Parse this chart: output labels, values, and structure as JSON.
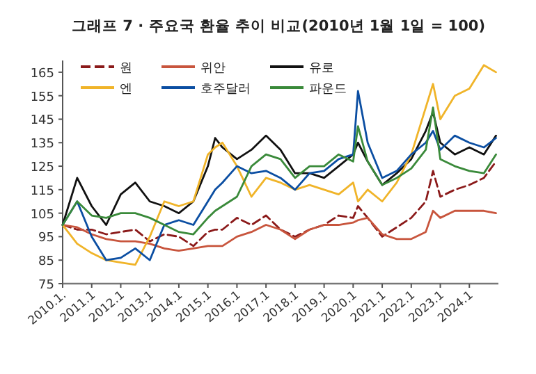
{
  "chart_data": {
    "type": "line",
    "title": "그래프 7 · 주요국 환율 추이 비교(2010년 1월 1일 = 100)",
    "x": [
      "2010-01",
      "2010-07",
      "2011-01",
      "2011-07",
      "2012-01",
      "2012-07",
      "2013-01",
      "2013-07",
      "2014-01",
      "2014-07",
      "2015-01",
      "2015-04",
      "2015-07",
      "2016-01",
      "2016-07",
      "2017-01",
      "2017-07",
      "2018-01",
      "2018-07",
      "2019-01",
      "2019-07",
      "2020-01",
      "2020-03",
      "2020-07",
      "2021-01",
      "2021-07",
      "2022-01",
      "2022-07",
      "2022-10",
      "2023-01",
      "2023-07",
      "2024-01",
      "2024-07",
      "2024-12"
    ],
    "series": [
      {
        "name": "원",
        "color": "#8b1a1a",
        "line_style": "dashed",
        "values": [
          100,
          98,
          98,
          96,
          97,
          98,
          93,
          96,
          95,
          91,
          97,
          98,
          98,
          103,
          100,
          104,
          98,
          95,
          98,
          100,
          104,
          103,
          108,
          103,
          95,
          99,
          103,
          110,
          123,
          112,
          115,
          117,
          120,
          127
        ]
      },
      {
        "name": "위안",
        "color": "#c8553d",
        "values": [
          100,
          99,
          96,
          94,
          93,
          93,
          92,
          90,
          89,
          90,
          91,
          91,
          91,
          95,
          97,
          100,
          98,
          94,
          98,
          100,
          100,
          101,
          102,
          103,
          96,
          94,
          94,
          97,
          106,
          103,
          106,
          106,
          106,
          105
        ]
      },
      {
        "name": "유로",
        "color": "#111111",
        "values": [
          100,
          120,
          108,
          100,
          113,
          118,
          110,
          108,
          105,
          110,
          125,
          137,
          133,
          128,
          132,
          138,
          132,
          122,
          122,
          120,
          125,
          130,
          135,
          127,
          117,
          122,
          128,
          140,
          148,
          135,
          130,
          133,
          130,
          138
        ]
      },
      {
        "name": "엔",
        "color": "#f0b429",
        "values": [
          100,
          92,
          88,
          85,
          84,
          83,
          95,
          110,
          108,
          110,
          130,
          133,
          135,
          125,
          112,
          120,
          118,
          115,
          117,
          115,
          113,
          118,
          110,
          115,
          110,
          118,
          130,
          150,
          160,
          145,
          155,
          158,
          168,
          165
        ]
      },
      {
        "name": "호주달러",
        "color": "#0b4ea2",
        "values": [
          100,
          110,
          95,
          85,
          86,
          90,
          85,
          100,
          102,
          100,
          110,
          115,
          118,
          125,
          122,
          123,
          120,
          115,
          122,
          123,
          128,
          130,
          157,
          135,
          120,
          123,
          130,
          135,
          140,
          132,
          138,
          135,
          133,
          137
        ]
      },
      {
        "name": "파운드",
        "color": "#3a8a3a",
        "values": [
          100,
          110,
          104,
          103,
          105,
          105,
          103,
          100,
          97,
          96,
          103,
          106,
          108,
          112,
          125,
          130,
          128,
          120,
          125,
          125,
          130,
          127,
          142,
          127,
          117,
          120,
          124,
          132,
          150,
          128,
          125,
          123,
          122,
          130
        ]
      }
    ],
    "xlim": [
      "2010-01",
      "2025-01"
    ],
    "xticks": [
      {
        "value": "2010-01",
        "label": "2010.1."
      },
      {
        "value": "2011-01",
        "label": "2011.1"
      },
      {
        "value": "2012-01",
        "label": "2012.1"
      },
      {
        "value": "2013-01",
        "label": "2013.1"
      },
      {
        "value": "2014-01",
        "label": "2014.1"
      },
      {
        "value": "2015-01",
        "label": "2015.1"
      },
      {
        "value": "2016-01",
        "label": "2016.1"
      },
      {
        "value": "2017-01",
        "label": "2017.1"
      },
      {
        "value": "2018-01",
        "label": "2018.1"
      },
      {
        "value": "2019-01",
        "label": "2019.1"
      },
      {
        "value": "2020-01",
        "label": "2020.1"
      },
      {
        "value": "2021-01",
        "label": "2021.1"
      },
      {
        "value": "2022-01",
        "label": "2022.1"
      },
      {
        "value": "2023-01",
        "label": "2023.1"
      },
      {
        "value": "2024-01",
        "label": "2024.1"
      }
    ],
    "ylim": [
      75,
      170
    ],
    "yticks": [
      75,
      85,
      95,
      105,
      115,
      125,
      135,
      145,
      155,
      165
    ],
    "legend": "top left",
    "grid": false
  }
}
